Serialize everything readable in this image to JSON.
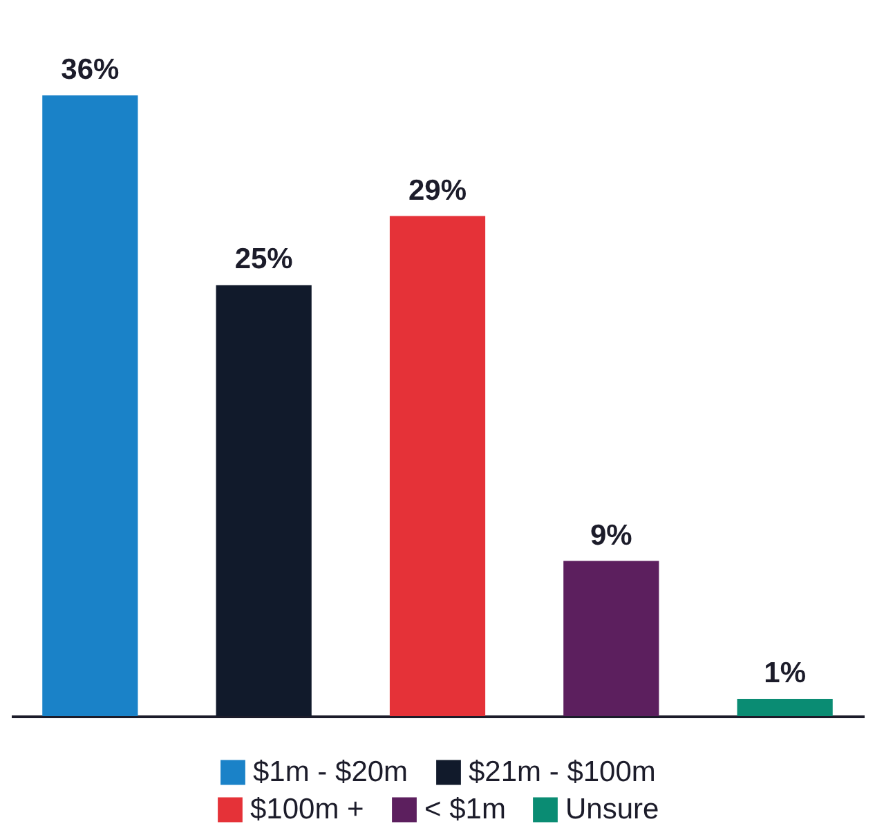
{
  "chart_data": {
    "type": "bar",
    "categories": [
      null,
      null,
      null,
      null,
      null
    ],
    "stacked": true,
    "series": [
      {
        "name": "$1m - $20m",
        "color": "#1a82c8",
        "values": [
          36,
          null,
          null,
          null,
          null
        ],
        "value_labels": [
          "36%",
          null,
          null,
          null,
          null
        ]
      },
      {
        "name": "$21m - $100m",
        "color": "#111a2b",
        "values": [
          null,
          25,
          null,
          null,
          null
        ],
        "value_labels": [
          null,
          "25%",
          null,
          null,
          null
        ]
      },
      {
        "name": "$100m +",
        "color": "#e53238",
        "values": [
          null,
          null,
          29,
          null,
          null
        ],
        "value_labels": [
          null,
          null,
          "29%",
          null,
          null
        ]
      },
      {
        "name": "< $1m",
        "color": "#5c1f5e",
        "values": [
          null,
          null,
          null,
          9,
          null
        ],
        "value_labels": [
          null,
          null,
          null,
          "9%",
          null
        ]
      },
      {
        "name": "Unsure",
        "color": "#0a8c73",
        "values": [
          null,
          null,
          null,
          null,
          1
        ],
        "value_labels": [
          null,
          null,
          null,
          null,
          "1%"
        ]
      }
    ],
    "legend": "bottom",
    "tick_labels": false
  }
}
